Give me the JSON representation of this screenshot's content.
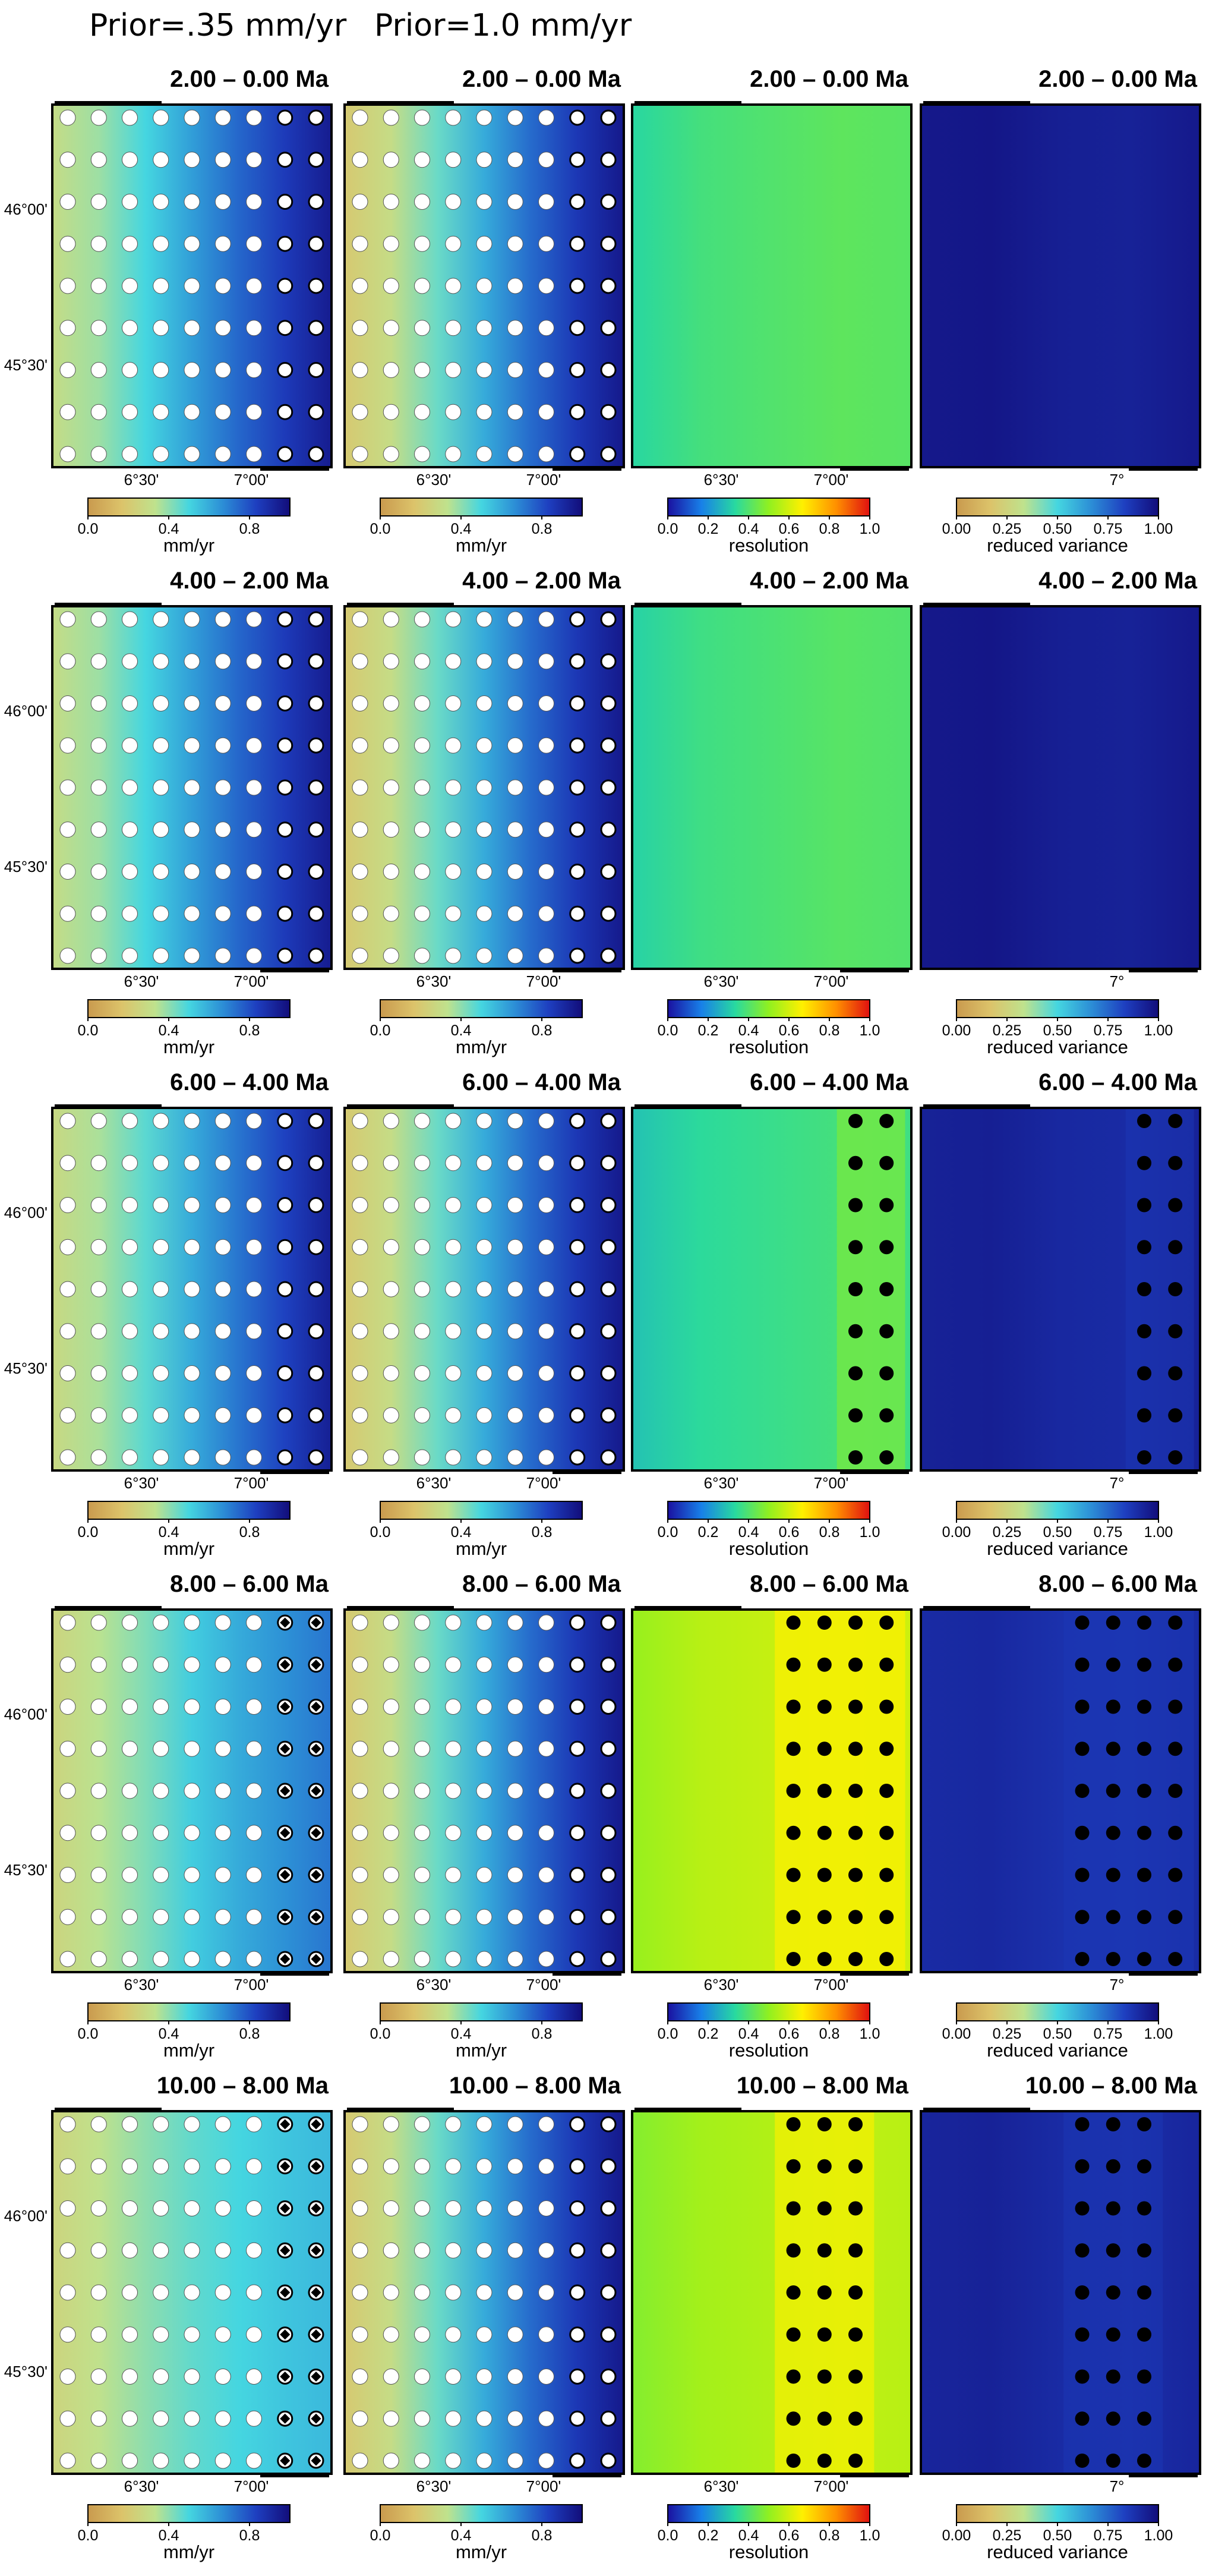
{
  "headers": {
    "left": "Prior=.35 mm/yr",
    "right": "Prior=1.0 mm/yr"
  },
  "axis_labels": {
    "lat": [
      "46°00'",
      "45°30'"
    ],
    "lon": [
      "6°30'",
      "7°00'"
    ],
    "lon_variance": "7°"
  },
  "colorbars": {
    "velocity": {
      "label": "mm/yr",
      "ticks": [
        "0.0",
        "0.4",
        "0.8"
      ]
    },
    "resolution": {
      "label": "resolution",
      "ticks": [
        "0.0",
        "0.2",
        "0.4",
        "0.6",
        "0.8",
        "1.0"
      ]
    },
    "variance": {
      "label": "reduced variance",
      "ticks": [
        "0.00",
        "0.25",
        "0.50",
        "0.75",
        "1.00"
      ]
    }
  },
  "colors": {
    "velocity_scale": [
      "#c99a4e",
      "#dcc36a",
      "#bfe28d",
      "#45d6e0",
      "#2c8ed6",
      "#1e3fc0",
      "#120d7a"
    ],
    "resolution_scale": [
      "#1a10a0",
      "#1880e8",
      "#28d9a0",
      "#90f020",
      "#fff000",
      "#ff9000",
      "#e01010"
    ],
    "variance_scale": [
      "#c99a4e",
      "#dcc36a",
      "#bfe28d",
      "#45d6e0",
      "#2c8ed6",
      "#1e3fc0",
      "#120d7a"
    ]
  },
  "rows": [
    {
      "time": [
        "2.00",
        "0.00 Ma"
      ],
      "panels": [
        {
          "kind": "velocity",
          "grad": [
            0.3,
            0.38,
            0.5,
            0.63,
            0.75,
            0.85,
            0.95
          ]
        },
        {
          "kind": "velocity",
          "grad": [
            0.2,
            0.3,
            0.45,
            0.6,
            0.74,
            0.86,
            0.96
          ]
        },
        {
          "kind": "resolution",
          "level": 0.4,
          "mask_cols": 0
        },
        {
          "kind": "variance",
          "level": 0.96,
          "mask_cols": 0
        }
      ]
    },
    {
      "time": [
        "4.00",
        "2.00 Ma"
      ],
      "panels": [
        {
          "kind": "velocity",
          "grad": [
            0.3,
            0.38,
            0.5,
            0.63,
            0.75,
            0.85,
            0.95
          ]
        },
        {
          "kind": "velocity",
          "grad": [
            0.2,
            0.3,
            0.45,
            0.6,
            0.74,
            0.86,
            0.96
          ]
        },
        {
          "kind": "resolution",
          "level": 0.39,
          "mask_cols": 0
        },
        {
          "kind": "variance",
          "level": 0.96,
          "mask_cols": 0
        }
      ]
    },
    {
      "time": [
        "6.00",
        "4.00 Ma"
      ],
      "panels": [
        {
          "kind": "velocity",
          "grad": [
            0.28,
            0.36,
            0.47,
            0.6,
            0.72,
            0.83,
            0.94
          ]
        },
        {
          "kind": "velocity",
          "grad": [
            0.2,
            0.3,
            0.45,
            0.6,
            0.74,
            0.86,
            0.96
          ]
        },
        {
          "kind": "resolution",
          "level": 0.36,
          "mask_cols": 2
        },
        {
          "kind": "variance",
          "level": 0.93,
          "mask_cols": 2
        }
      ]
    },
    {
      "time": [
        "8.00",
        "6.00 Ma"
      ],
      "panels": [
        {
          "kind": "velocity",
          "grad": [
            0.26,
            0.34,
            0.42,
            0.52,
            0.6,
            0.66,
            0.72
          ]
        },
        {
          "kind": "velocity",
          "grad": [
            0.2,
            0.3,
            0.45,
            0.6,
            0.74,
            0.86,
            0.96
          ]
        },
        {
          "kind": "resolution",
          "level": 0.58,
          "mask_cols": 4
        },
        {
          "kind": "variance",
          "level": 0.9,
          "mask_cols": 4
        }
      ]
    },
    {
      "time": [
        "10.00",
        "8.00 Ma"
      ],
      "panels": [
        {
          "kind": "velocity",
          "grad": [
            0.26,
            0.33,
            0.4,
            0.46,
            0.5,
            0.54,
            0.57
          ]
        },
        {
          "kind": "velocity",
          "grad": [
            0.2,
            0.3,
            0.45,
            0.6,
            0.74,
            0.86,
            0.96
          ]
        },
        {
          "kind": "resolution",
          "level": 0.55,
          "mask_cols": 3
        },
        {
          "kind": "variance",
          "level": 0.92,
          "mask_cols": 3
        }
      ]
    }
  ]
}
